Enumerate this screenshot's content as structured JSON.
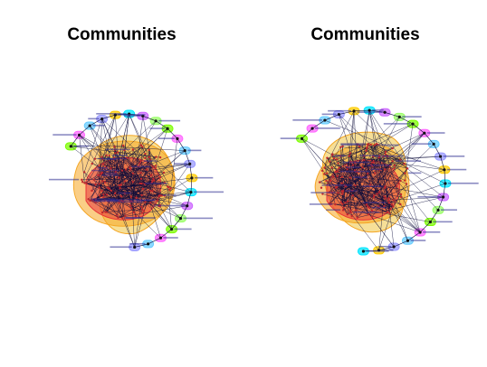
{
  "panels": [
    {
      "title": "Communities"
    },
    {
      "title": "Communities"
    }
  ],
  "colors": {
    "hull_red": "#e8343a",
    "hull_orange": "#f5a623",
    "hull_yellow": "#f2d16b",
    "ring_palette": [
      "#7cfc00",
      "#ff66ff",
      "#66ccff",
      "#9999ff",
      "#ffcc00",
      "#00e5ff",
      "#cc66ff",
      "#99ff66"
    ],
    "edge": "#0b0b3a",
    "label": "#2b2b8f"
  }
}
